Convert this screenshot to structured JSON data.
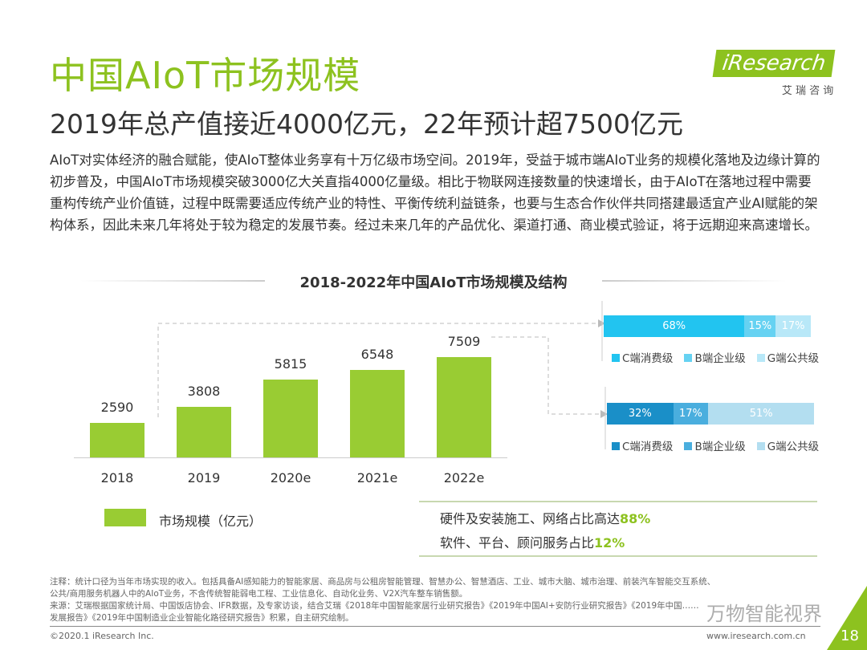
{
  "title": "中国AIoT市场规模",
  "subtitle": "2019年总产值接近4000亿元，22年预计超7500亿元",
  "intro": "AIoT对实体经济的融合赋能，使AIoT整体业务享有十万亿级市场空间。2019年，受益于城市端AIoT业务的规模化落地及边缘计算的初步普及，中国AIoT市场规模突破3000亿大关直指4000亿量级。相比于物联网连接数量的快速增长，由于AIoT在落地过程中需要重构传统产业价值链，过程中既需要适应传统产业的特性、平衡传统利益链条，也要与生态合作伙伴共同搭建最适宜产业AI赋能的架构体系，因此未来几年将处于较为稳定的发展节奏。经过未来几年的产品优化、渠道打通、商业模式验证，将于远期迎来高速增长。",
  "logo": {
    "brand": "iResearch",
    "cn": "艾 瑞 咨 询"
  },
  "chart_data": [
    {
      "type": "bar",
      "title": "2018-2022年中国AIoT市场规模及结构",
      "categories": [
        "2018",
        "2019",
        "2020e",
        "2021e",
        "2022e"
      ],
      "values": [
        2590,
        3808,
        5815,
        6548,
        7509
      ],
      "legend": "市场规模（亿元）",
      "color": "#99cc33"
    },
    {
      "type": "bar",
      "orientation": "horizontal-stacked",
      "categories": [
        "2019"
      ],
      "series": [
        {
          "name": "C端消费级",
          "value": 68,
          "label": "68%",
          "color": "#22c4f0"
        },
        {
          "name": "B端企业级",
          "value": 15,
          "label": "15%",
          "color": "#66d2f2"
        },
        {
          "name": "G端公共级",
          "value": 17,
          "label": "17%",
          "color": "#b8e8f8"
        }
      ]
    },
    {
      "type": "bar",
      "orientation": "horizontal-stacked",
      "categories": [
        "2022e"
      ],
      "series": [
        {
          "name": "C端消费级",
          "value": 32,
          "label": "32%",
          "color": "#1a8fc8"
        },
        {
          "name": "B端企业级",
          "value": 17,
          "label": "17%",
          "color": "#4aaede"
        },
        {
          "name": "G端公共级",
          "value": 51,
          "label": "51%",
          "color": "#b3def0"
        }
      ]
    }
  ],
  "summary": [
    {
      "text": "硬件及安装施工、网络占比高达",
      "value": "88%"
    },
    {
      "text": "软件、平台、顾问服务占比",
      "value": "12%"
    }
  ],
  "notes": [
    "注释：统计口径为当年市场实现的收入。包括具备AI感知能力的智能家居、商品房与公租房智能管理、智慧办公、智慧酒店、工业、城市大脑、城市治理、前装汽车智能交互系统、",
    "公共/商用服务机器人中的AIoT业务，不含传统智能弱电工程、工业信息化、自动化业务、V2X汽车整车销售额。",
    "来源：艾瑞根据国家统计局、中国饭店协会、IFR数据，及专家访谈，结合艾瑞《2018年中国智能家居行业研究报告》《2019年中国AI+安防行业研究报告》《2019年中国……",
    "发展报告》《2019年中国制造业企业智能化路径研究报告》积累，自主研究绘制。"
  ],
  "watermark": "万物智能视界",
  "footer": {
    "copyright": "©2020.1 iResearch Inc.",
    "url": "www.iresearch.com.cn",
    "page": "18"
  }
}
